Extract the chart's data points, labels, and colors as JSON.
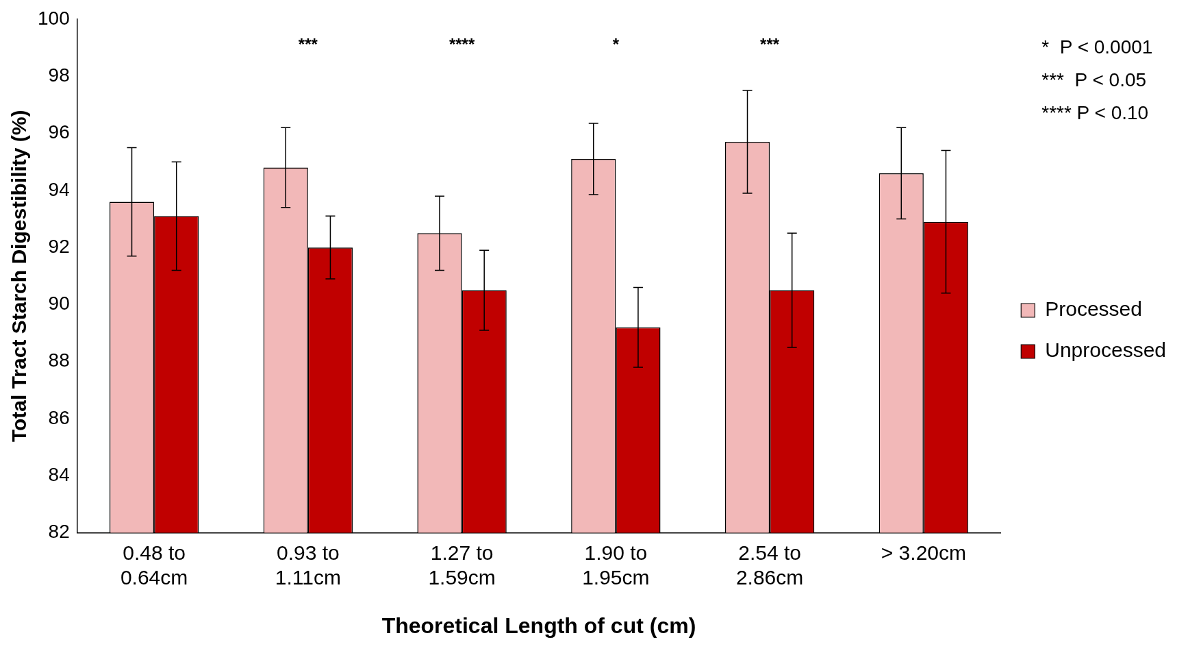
{
  "chart_data": {
    "type": "bar",
    "xlabel": "Theoretical Length of cut (cm)",
    "ylabel": "Total Tract Starch Digestibility (%)",
    "categories": [
      "0.48 to 0.64cm",
      "0.93 to 1.11cm",
      "1.27 to 1.59cm",
      "1.90 to 1.95cm",
      "2.54 to 2.86cm",
      "> 3.20cm"
    ],
    "series": [
      {
        "name": "Processed",
        "color": "#f2b8b8",
        "values": [
          93.6,
          94.8,
          92.5,
          95.1,
          95.7,
          94.6
        ],
        "errors": [
          1.9,
          1.4,
          1.3,
          1.25,
          1.8,
          1.6
        ]
      },
      {
        "name": "Unprocessed",
        "color": "#c00000",
        "values": [
          93.1,
          92.0,
          90.5,
          89.2,
          90.5,
          92.9
        ],
        "errors": [
          1.9,
          1.1,
          1.4,
          1.4,
          2.0,
          2.5
        ]
      }
    ],
    "ylim": [
      82,
      100
    ],
    "yticks": [
      82,
      84,
      86,
      88,
      90,
      92,
      94,
      96,
      98,
      100
    ],
    "grid": false,
    "legend": "right",
    "annotations": [
      "***",
      "****",
      "*",
      "***",
      "*  P < 0.0001",
      "***  P < 0.05",
      "**** P < 0.10"
    ]
  }
}
